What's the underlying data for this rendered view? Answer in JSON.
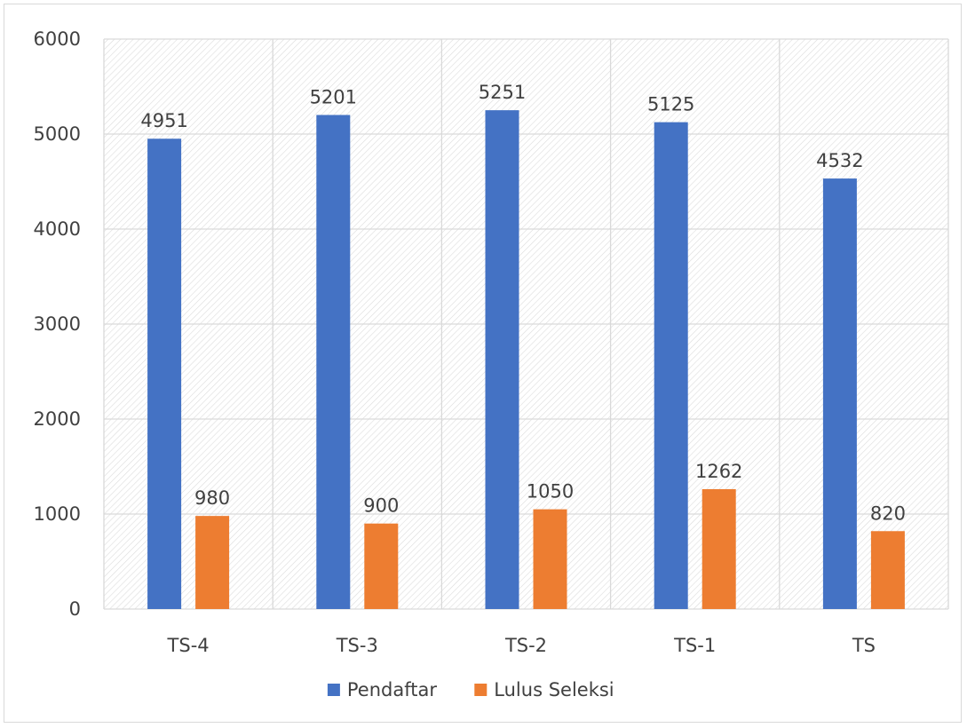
{
  "chart_data": {
    "type": "bar",
    "categories": [
      "TS-4",
      "TS-3",
      "TS-2",
      "TS-1",
      "TS"
    ],
    "series": [
      {
        "name": "Pendaftar",
        "color": "#4472c4",
        "values": [
          4951,
          5201,
          5251,
          5125,
          4532
        ]
      },
      {
        "name": "Lulus Seleksi",
        "color": "#ed7d31",
        "values": [
          980,
          900,
          1050,
          1262,
          820
        ]
      }
    ],
    "yticks": [
      "0",
      "1000",
      "2000",
      "3000",
      "4000",
      "5000",
      "6000"
    ],
    "ylim": [
      0,
      6000
    ],
    "grid": true,
    "legend": "bottom",
    "data_labels": true,
    "plot_background": "hatched-light-gray"
  }
}
